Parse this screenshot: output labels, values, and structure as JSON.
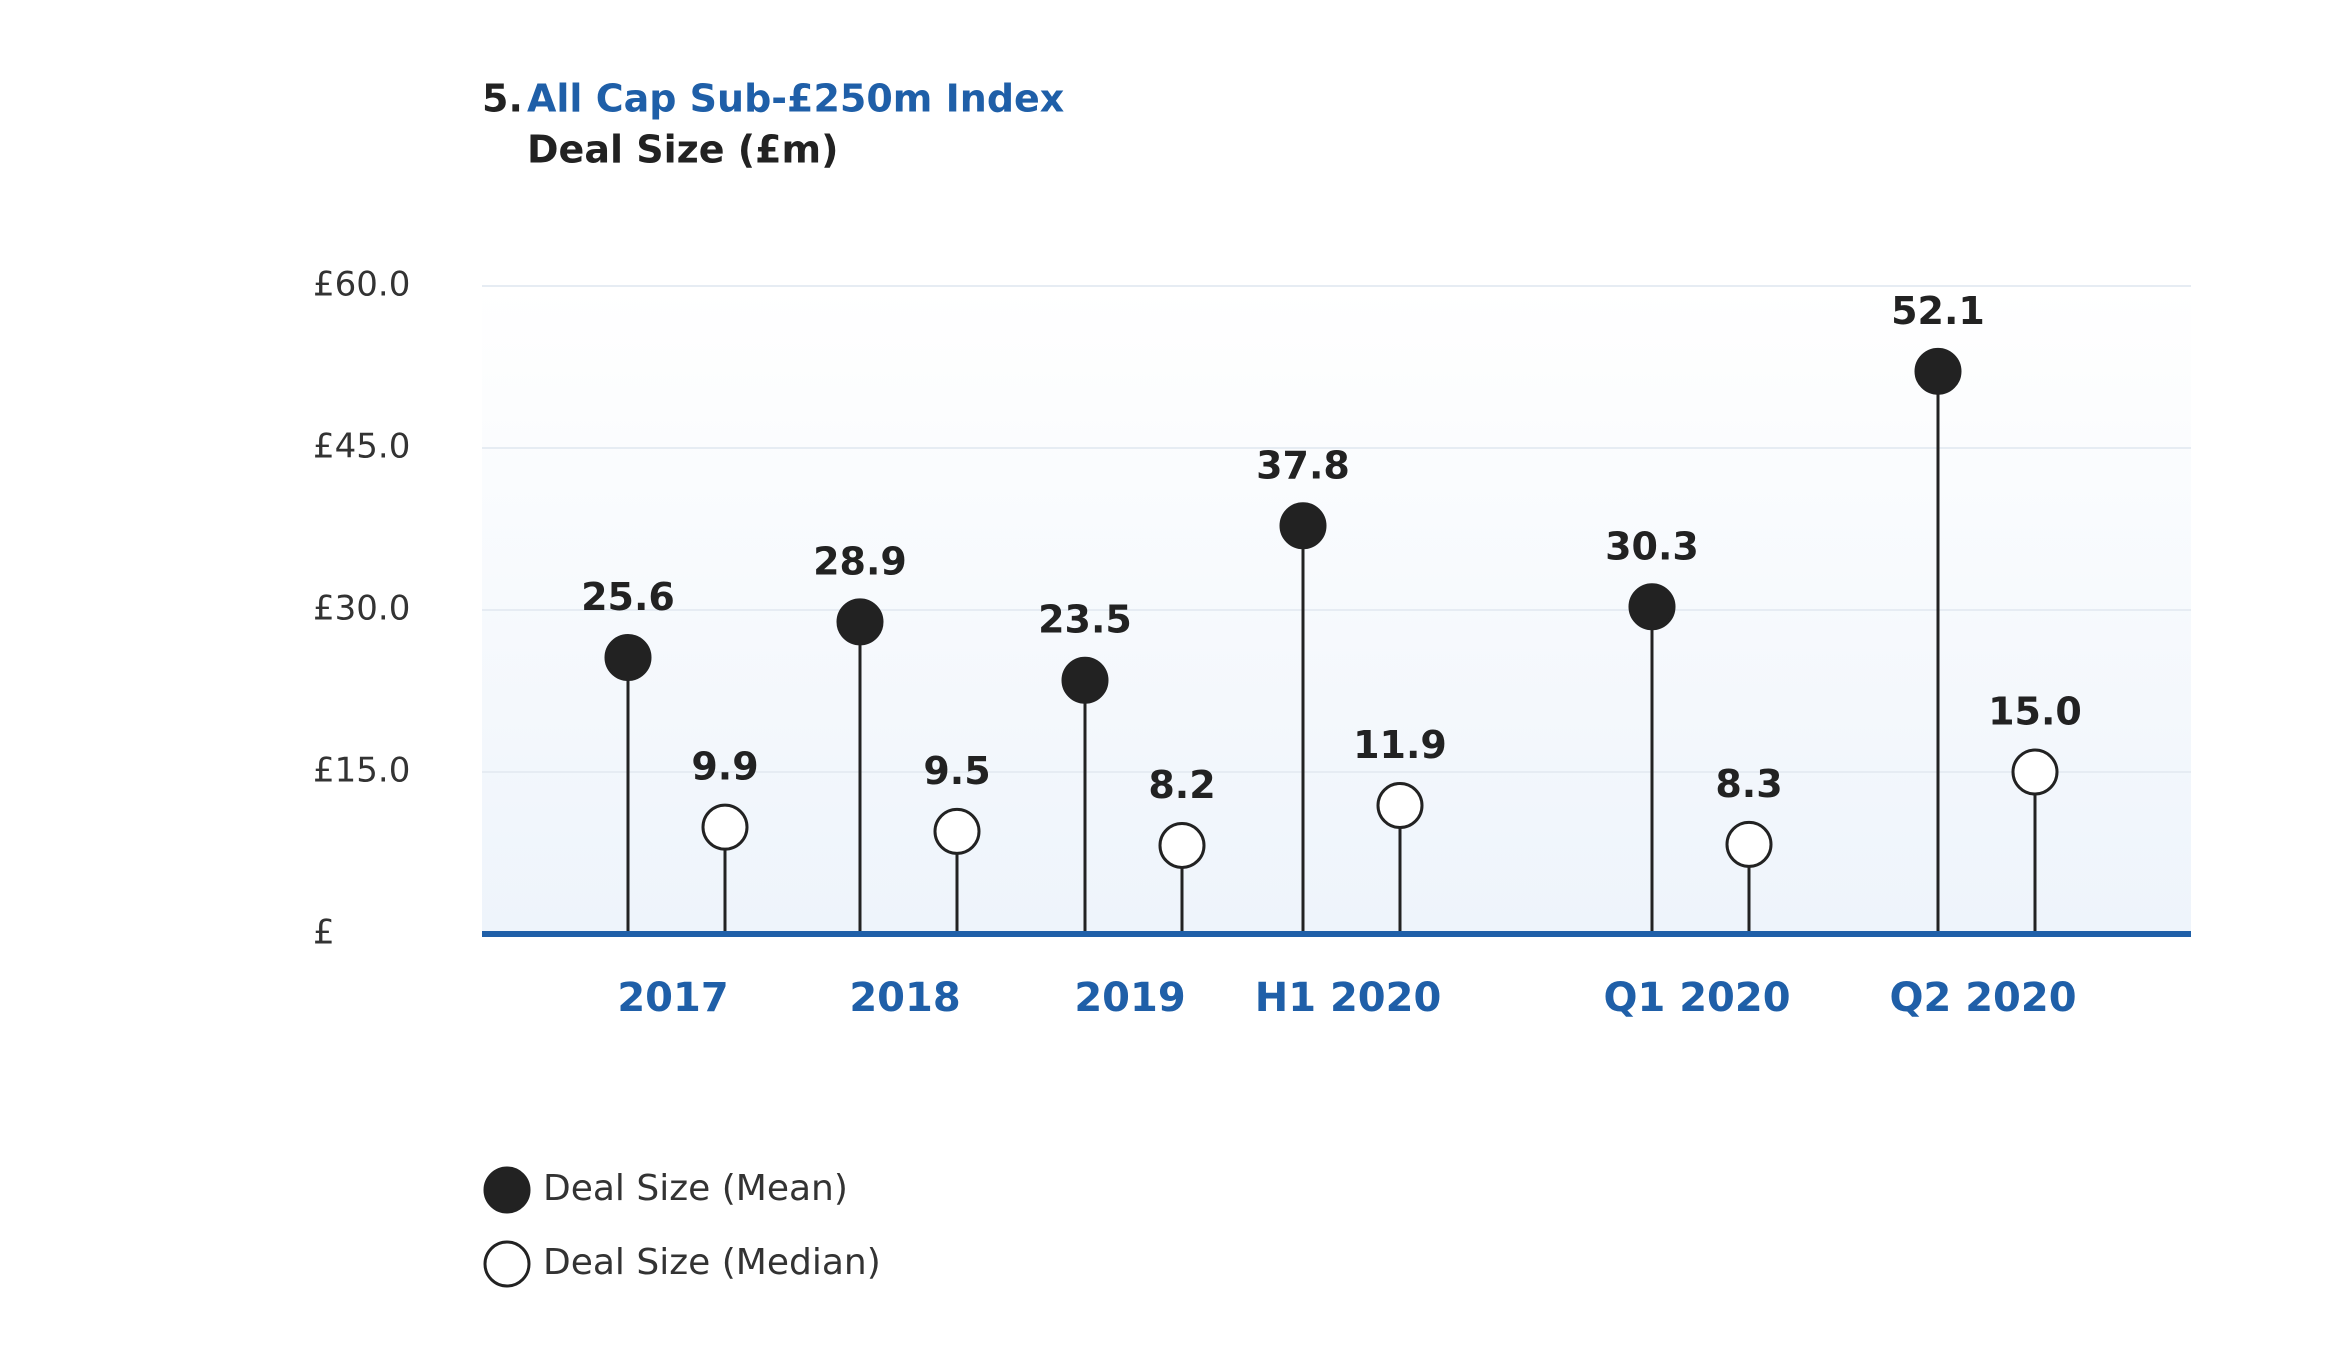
{
  "chart_data": {
    "type": "lollipop",
    "title_number": "5.",
    "title": "All Cap Sub-£250m Index",
    "subtitle": "Deal Size (£m)",
    "categories": [
      "2017",
      "2018",
      "2019",
      "H1 2020",
      "Q1 2020",
      "Q2 2020"
    ],
    "series": [
      {
        "name": "Deal Size (Mean)",
        "color": "#222222",
        "values": [
          25.6,
          28.9,
          23.5,
          37.8,
          30.3,
          52.1
        ]
      },
      {
        "name": "Deal Size (Median)",
        "color": "#ffffff",
        "values": [
          9.9,
          9.5,
          8.2,
          11.9,
          8.3,
          15.0
        ],
        "value_labels": [
          "9.9",
          "9.5",
          "8.2",
          "11.9",
          "8.3",
          "15.0"
        ]
      }
    ],
    "ylim": [
      0,
      60
    ],
    "yticks": [
      {
        "value": 0,
        "label": "£"
      },
      {
        "value": 15,
        "label": "£15.0"
      },
      {
        "value": 30,
        "label": "£30.0"
      },
      {
        "value": 45,
        "label": "£45.0"
      },
      {
        "value": 60,
        "label": "£60.0"
      }
    ],
    "grid": true,
    "axis_color": "#1f5fa8"
  }
}
